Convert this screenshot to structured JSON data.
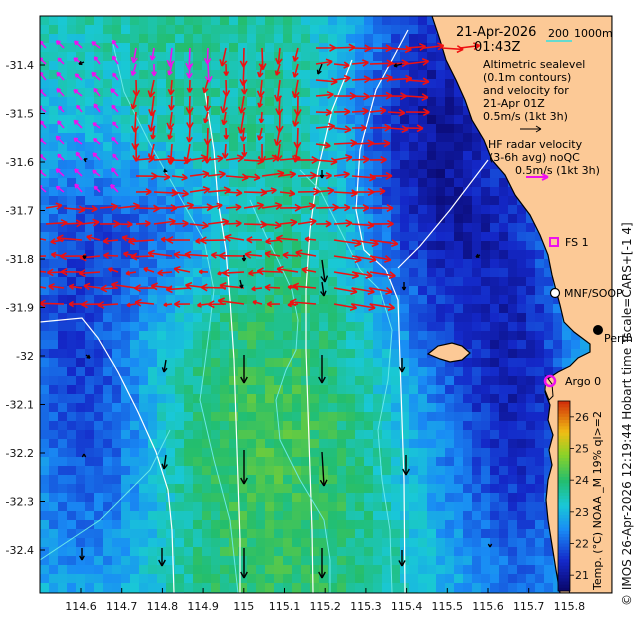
{
  "header": {
    "date": "21-Apr-2026",
    "time": "01:43Z"
  },
  "scale_bar": {
    "label_a": "200",
    "label_b": "1000m",
    "color": "#33e0e0"
  },
  "legend": {
    "altimetry": [
      "Altimetric sealevel",
      "(0.1m contours)",
      "and velocity for",
      "21-Apr 01Z"
    ],
    "altimetry_ref": "0.5m/s (1kt 3h)",
    "hf_radar": [
      "HF radar velocity",
      "(3-6h avg) noQC"
    ],
    "hf_ref": "0.5m/s (1kt 3h)"
  },
  "stations": [
    {
      "name": "FS 1",
      "symbol": "magenta-square"
    },
    {
      "name": "MNF/SOOP",
      "symbol": "black-circle"
    },
    {
      "name": "Perth",
      "symbol": "black-dot"
    },
    {
      "name": "Argo 0",
      "symbol": "magenta-circle"
    }
  ],
  "axes": {
    "lat_ticks": [
      "-31.4",
      "-31.5",
      "-31.6",
      "-31.7",
      "-31.8",
      "-31.9",
      "-32",
      "-32.1",
      "-32.2",
      "-32.3",
      "-32.4"
    ],
    "lon_ticks": [
      "114.6",
      "114.7",
      "114.8",
      "114.9",
      "115",
      "115.1",
      "115.2",
      "115.3",
      "115.4",
      "115.5",
      "115.6",
      "115.7",
      "115.8"
    ]
  },
  "colorbar": {
    "label": "Temp. (°C) NOAA _M 19% ql>=2",
    "ticks": [
      "21",
      "22",
      "23",
      "24",
      "25",
      "26"
    ],
    "range": [
      20.5,
      26.5
    ]
  },
  "side_text": "© IMOS 26-Apr-2026 12:19:44 Hobart time Tscale=CARS+[-1 4]",
  "colors": {
    "land": "#fcc996",
    "hf_arrow": "#ee1111",
    "argo": "#ee11ee"
  }
}
